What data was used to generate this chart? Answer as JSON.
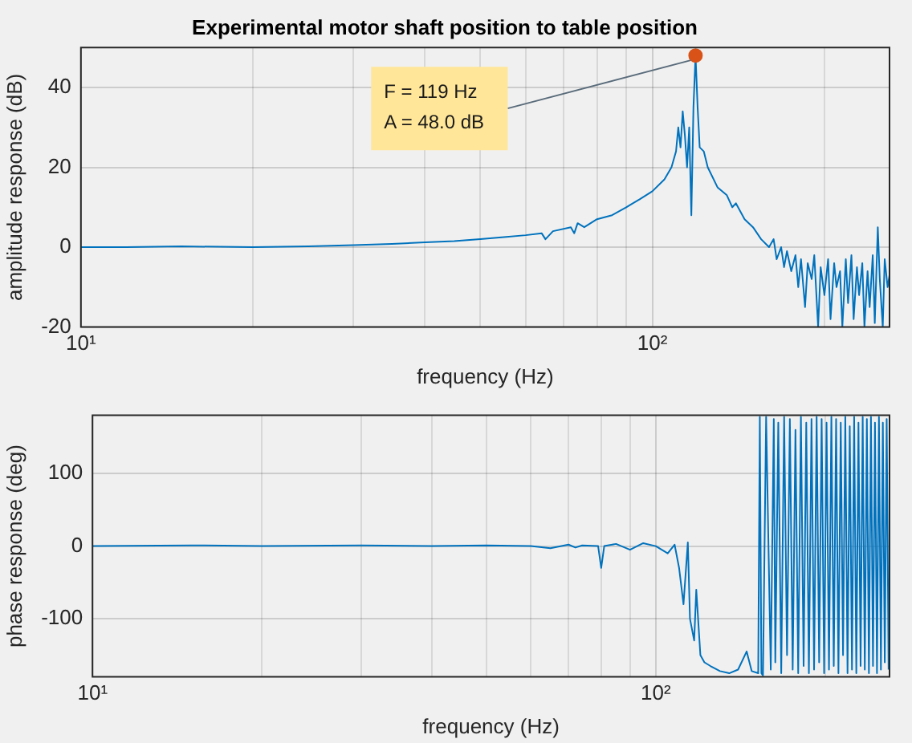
{
  "chart_data": [
    {
      "type": "line",
      "title": "Experimental motor shaft position to table position",
      "xlabel": "frequency (Hz)",
      "ylabel": "amplitude response (dB)",
      "log": "x",
      "grid": true,
      "xlim": [
        10,
        260
      ],
      "xticks": [
        {
          "value": 10,
          "label": "10¹"
        },
        {
          "value": 20,
          "label": null
        },
        {
          "value": 30,
          "label": null
        },
        {
          "value": 40,
          "label": null
        },
        {
          "value": 50,
          "label": null
        },
        {
          "value": 60,
          "label": null
        },
        {
          "value": 70,
          "label": null
        },
        {
          "value": 80,
          "label": null
        },
        {
          "value": 90,
          "label": null
        },
        {
          "value": 100,
          "label": "10²"
        },
        {
          "value": 200,
          "label": null
        }
      ],
      "ylim": [
        -20,
        50
      ],
      "yticks": [
        -20,
        0,
        20,
        40
      ],
      "annotations": [
        {
          "text": "F = 119 Hz\nA = 48.0 dB",
          "x": 119,
          "y": 48
        }
      ],
      "series": [
        {
          "color": "#0072bd",
          "x": [
            10,
            12,
            15,
            20,
            25,
            30,
            35,
            40,
            45,
            50,
            55,
            60,
            64,
            65,
            67,
            72,
            73,
            74,
            76,
            80,
            85,
            90,
            95,
            100,
            105,
            108,
            110,
            111,
            112,
            113,
            114,
            115,
            116,
            117,
            118,
            119,
            120,
            121,
            123,
            125,
            130,
            135,
            138,
            140,
            145,
            150,
            155,
            160,
            163,
            165,
            168,
            170,
            172,
            175,
            178,
            180,
            182,
            185,
            187,
            190,
            192,
            195,
            197,
            200,
            203,
            205,
            208,
            210,
            213,
            215,
            218,
            220,
            223,
            225,
            228,
            230,
            233,
            235,
            238,
            240,
            243,
            245,
            248,
            250,
            253,
            255,
            258,
            260
          ],
          "values": [
            0,
            0,
            0.2,
            0,
            0.2,
            0.5,
            0.8,
            1.2,
            1.5,
            2,
            2.5,
            3,
            3.5,
            2,
            4,
            5,
            3.5,
            6,
            5,
            7,
            8,
            10,
            12,
            14,
            17,
            20,
            24,
            30,
            25,
            34,
            28,
            20,
            30,
            8,
            35,
            48,
            35,
            25,
            24,
            20,
            15,
            13,
            10,
            11,
            7,
            5,
            2,
            0,
            2,
            -3,
            0,
            -5,
            -1,
            -6,
            -2,
            -10,
            -3,
            -15,
            -4,
            -8,
            -2,
            -20,
            -5,
            -12,
            -3,
            -18,
            -4,
            -10,
            -6,
            -20,
            -3,
            -14,
            -2,
            -18,
            -5,
            -12,
            -4,
            -20,
            -6,
            -15,
            -2,
            -19,
            5,
            -8,
            -20,
            -3,
            -10,
            -7
          ]
        },
        {
          "type": "scatter",
          "color": "#d95319",
          "marker": "circle",
          "x": [
            119
          ],
          "values": [
            48
          ]
        }
      ]
    },
    {
      "type": "line",
      "xlabel": "frequency (Hz)",
      "ylabel": "phase response (deg)",
      "log": "x",
      "grid": true,
      "xlim": [
        10,
        260
      ],
      "xticks": [
        {
          "value": 10,
          "label": "10¹"
        },
        {
          "value": 20,
          "label": null
        },
        {
          "value": 30,
          "label": null
        },
        {
          "value": 40,
          "label": null
        },
        {
          "value": 50,
          "label": null
        },
        {
          "value": 60,
          "label": null
        },
        {
          "value": 70,
          "label": null
        },
        {
          "value": 80,
          "label": null
        },
        {
          "value": 90,
          "label": null
        },
        {
          "value": 100,
          "label": "10²"
        },
        {
          "value": 200,
          "label": null
        }
      ],
      "ylim": [
        -180,
        180
      ],
      "yticks": [
        -100,
        0,
        100
      ],
      "series": [
        {
          "color": "#0072bd",
          "x": [
            10,
            15,
            20,
            30,
            40,
            50,
            60,
            65,
            70,
            72,
            74,
            79,
            80,
            81,
            85,
            90,
            95,
            100,
            105,
            108,
            110,
            112,
            114,
            115,
            117,
            118,
            120,
            122,
            125,
            130,
            135,
            140,
            145,
            148,
            152,
            153,
            154,
            155,
            157,
            160,
            162,
            163,
            165,
            167,
            169,
            171,
            173,
            175,
            177,
            179,
            181,
            183,
            185,
            187,
            189,
            191,
            193,
            195,
            197,
            199,
            201,
            203,
            205,
            207,
            209,
            211,
            213,
            215,
            217,
            219,
            221,
            223,
            225,
            227,
            229,
            231,
            233,
            235,
            237,
            239,
            241,
            243,
            245,
            247,
            249,
            251,
            253,
            255,
            257,
            259
          ],
          "values": [
            0,
            1,
            0,
            1,
            0,
            1,
            0,
            -3,
            2,
            -2,
            1,
            0,
            -30,
            0,
            3,
            -5,
            4,
            0,
            -10,
            2,
            -30,
            -80,
            5,
            -100,
            -130,
            -60,
            -150,
            -160,
            -165,
            -172,
            -175,
            -170,
            -145,
            -172,
            -175,
            178,
            -175,
            -178,
            178,
            -170,
            175,
            -160,
            170,
            -175,
            178,
            -150,
            175,
            -170,
            160,
            -175,
            178,
            -165,
            170,
            -175,
            175,
            -170,
            178,
            -160,
            175,
            -175,
            170,
            -170,
            178,
            -165,
            175,
            -175,
            170,
            -150,
            178,
            -175,
            165,
            -170,
            178,
            -175,
            170,
            -165,
            178,
            -170,
            175,
            -175,
            178,
            -165,
            170,
            -175,
            178,
            -170,
            170,
            -160,
            175,
            -170
          ]
        }
      ]
    }
  ]
}
